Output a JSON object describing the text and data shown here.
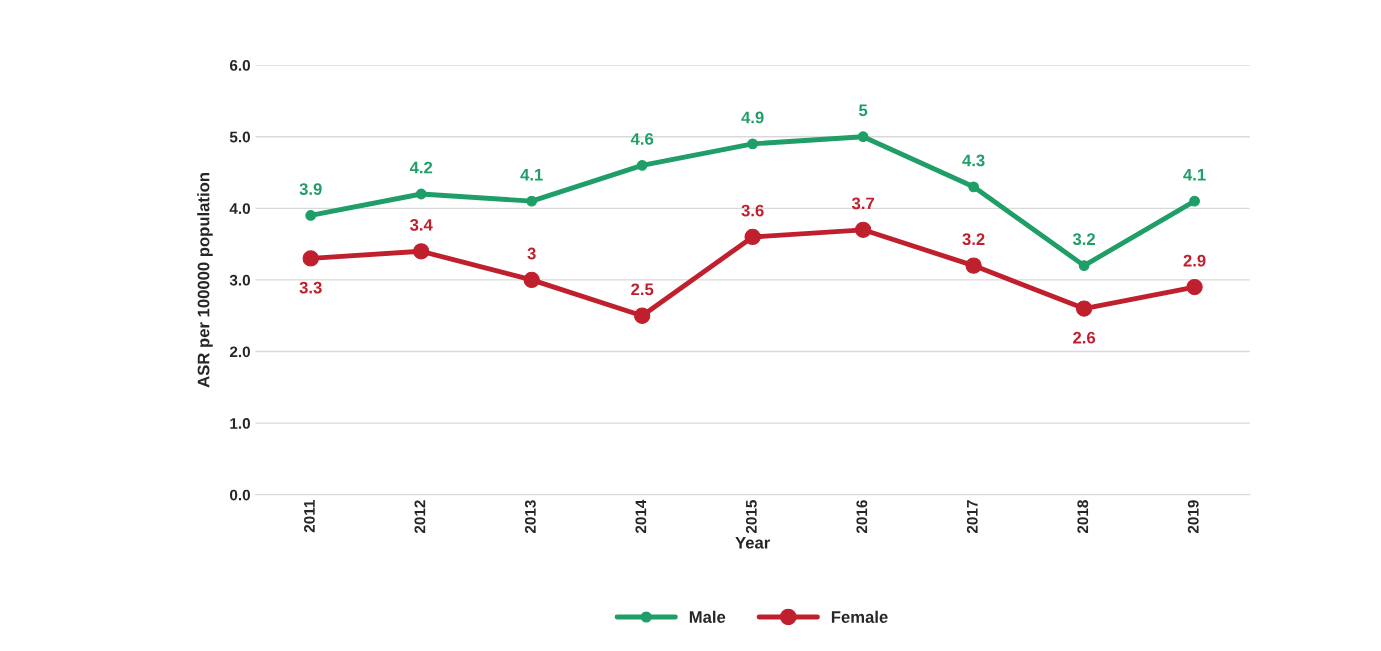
{
  "chart_data": {
    "type": "line",
    "xlabel": "Year",
    "ylabel": "ASR per 100000 population",
    "categories": [
      "2011",
      "2012",
      "2013",
      "2014",
      "2015",
      "2016",
      "2017",
      "2018",
      "2019"
    ],
    "series": [
      {
        "name": "Male",
        "color": "#1f9e68",
        "values": [
          3.9,
          4.2,
          4.1,
          4.6,
          4.9,
          5,
          4.3,
          3.2,
          4.1
        ]
      },
      {
        "name": "Female",
        "color": "#c0202e",
        "values": [
          3.3,
          3.4,
          3,
          2.5,
          3.6,
          3.7,
          3.2,
          2.6,
          2.9
        ]
      }
    ],
    "ylim": [
      0,
      6
    ],
    "yticks": [
      {
        "value": 0,
        "label": "0.0"
      },
      {
        "value": 1,
        "label": "1.0"
      },
      {
        "value": 2,
        "label": "2.0"
      },
      {
        "value": 3,
        "label": "3.0"
      },
      {
        "value": 4,
        "label": "4.0"
      },
      {
        "value": 5,
        "label": "5.0"
      },
      {
        "value": 6,
        "label": "6.0"
      }
    ],
    "grid": "y",
    "legend": "bottom",
    "marker": "circle",
    "line_style": "solid",
    "data_labels": true
  }
}
